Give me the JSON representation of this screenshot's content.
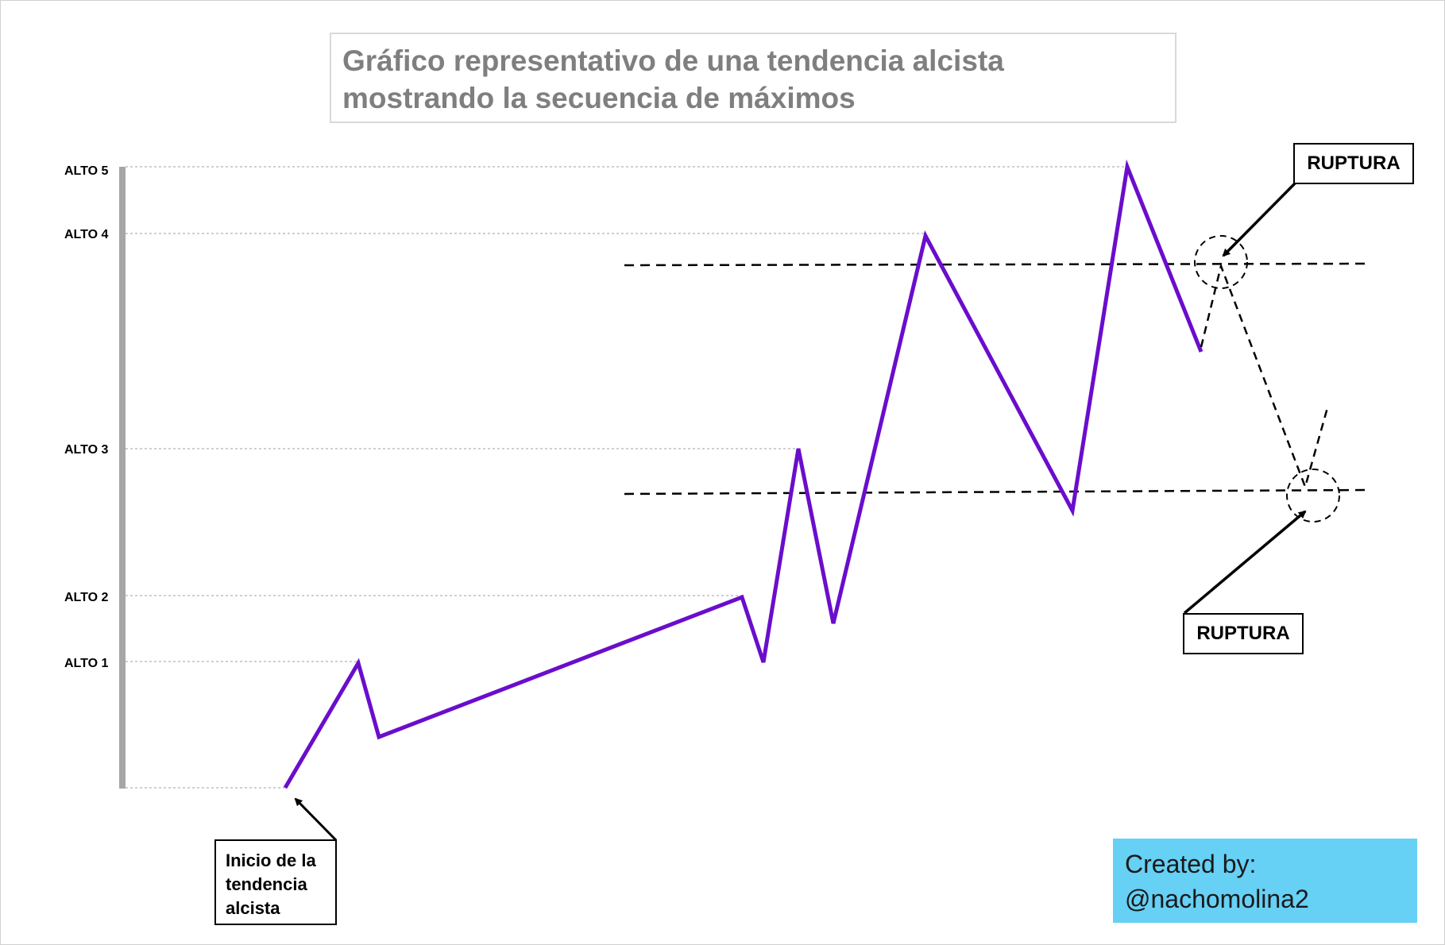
{
  "title": "Gráfico representativo de una tendencia alcista mostrando la secuencia de máximos",
  "levels": [
    {
      "label": "ALTO 5"
    },
    {
      "label": "ALTO 4"
    },
    {
      "label": "ALTO 3"
    },
    {
      "label": "ALTO 2"
    },
    {
      "label": "ALTO 1"
    }
  ],
  "start_label": "Inicio de la tendencia alcista",
  "breakout_top_label": "RUPTURA",
  "breakout_bottom_label": "RUPTURA",
  "credit": {
    "line1": "Created by:",
    "line2": "@nachomolina2"
  },
  "colors": {
    "trend_line": "#6a0dcc",
    "axis": "#a6a6a6",
    "guide": "#bfbfbf",
    "credit_background": "#66d0f5",
    "title_text": "#7f7f7f"
  }
}
